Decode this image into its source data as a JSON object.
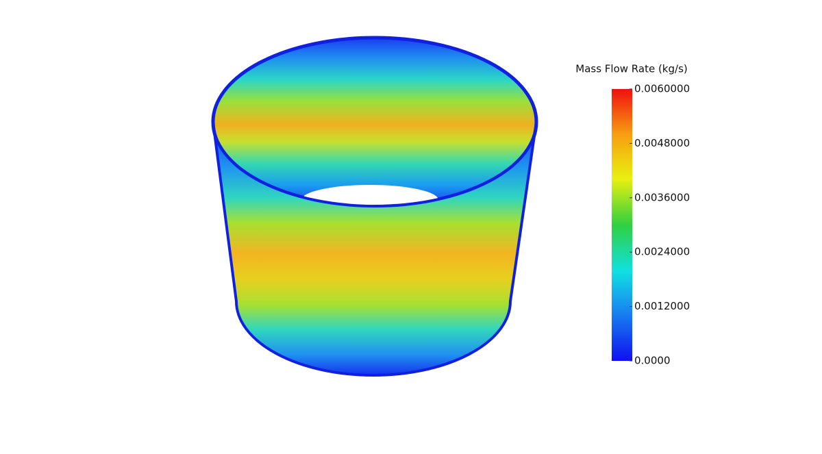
{
  "legend": {
    "title": "Mass Flow Rate (kg/s)",
    "range": [
      0,
      0.006
    ],
    "ticks": [
      {
        "value": 0.006,
        "label": "0.0060000"
      },
      {
        "value": 0.0048,
        "label": "0.0048000"
      },
      {
        "value": 0.0036,
        "label": "0.0036000"
      },
      {
        "value": 0.0024,
        "label": "0.0024000"
      },
      {
        "value": 0.0012,
        "label": "0.0012000"
      },
      {
        "value": 0,
        "label": "0.0000"
      }
    ]
  }
}
